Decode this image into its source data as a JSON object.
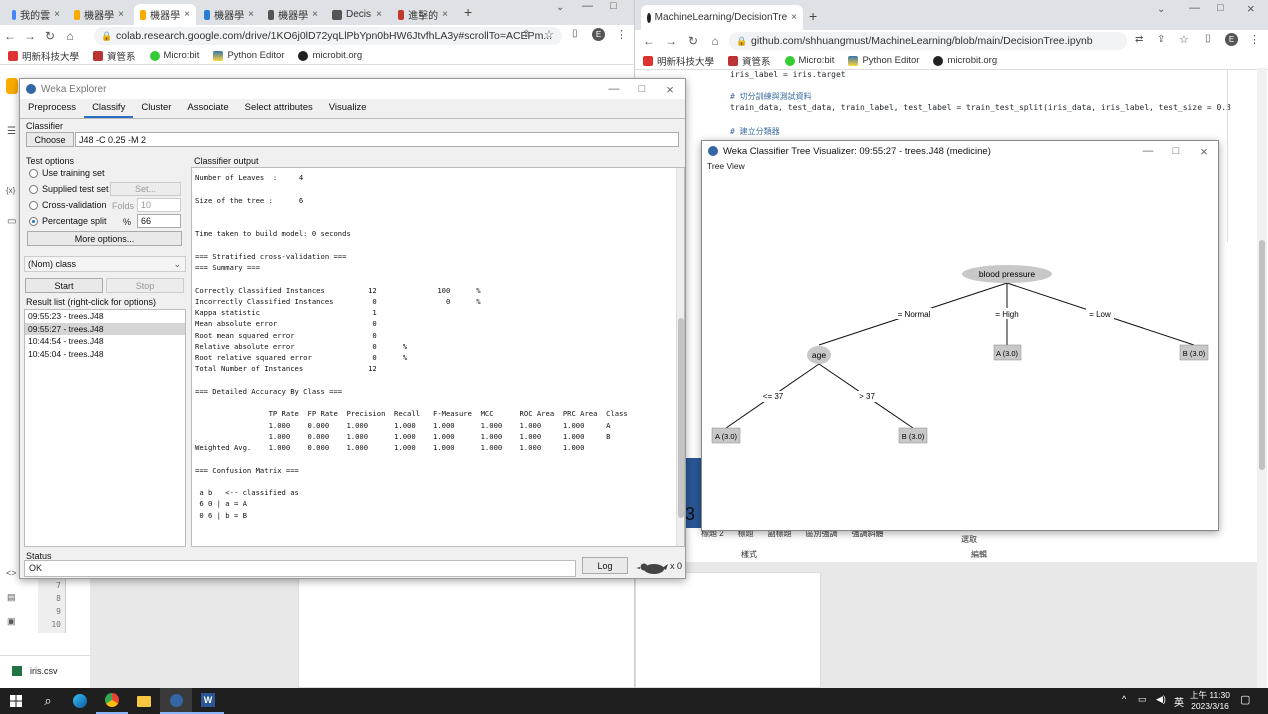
{
  "left_browser": {
    "tabs": [
      {
        "label": "我的雲"
      },
      {
        "label": "機器學"
      },
      {
        "label": "機器學"
      },
      {
        "label": "機器學"
      },
      {
        "label": "機器學"
      },
      {
        "label": "Decis"
      },
      {
        "label": "進擊的"
      }
    ],
    "url": "colab.research.google.com/drive/1KO6j0lD72yqLlPbYpn0bHW6JtvfhLA3y#scrollTo=ACEPm...",
    "bookmarks": [
      "明新科技大學",
      "資管系",
      "Micro:bit",
      "Python Editor",
      "microbit.org"
    ]
  },
  "right_browser": {
    "tab": "MachineLearning/DecisionTre",
    "url": "github.com/shhuangmust/MachineLearning/blob/main/DecisionTree.ipynb",
    "bookmarks": [
      "明新科技大學",
      "資管系",
      "Micro:bit",
      "Python Editor",
      "microbit.org"
    ],
    "code_lines": [
      "iris_label = iris.target",
      "# 切分訓練與測試資料",
      "train_data, test_data, train_label, test_label = train_test_split(iris_data, iris_label, test_size = 0.3",
      "# 建立分類器"
    ]
  },
  "weka": {
    "title": "Weka Explorer",
    "tabs": [
      "Preprocess",
      "Classify",
      "Cluster",
      "Associate",
      "Select attributes",
      "Visualize"
    ],
    "classifier_label": "Classifier",
    "choose_button": "Choose",
    "classifier_value": "J48 -C 0.25 -M 2",
    "test_options_label": "Test options",
    "options": {
      "use_training": "Use training set",
      "supplied": "Supplied test set",
      "set_button": "Set...",
      "cross_val": "Cross-validation",
      "folds_label": "Folds",
      "folds_value": "10",
      "percentage": "Percentage split",
      "pct_symbol": "%",
      "pct_value": "66",
      "more_options": "More options..."
    },
    "class_select": "(Nom) class",
    "start_button": "Start",
    "stop_button": "Stop",
    "result_list_label": "Result list (right-click for options)",
    "results": [
      "09:55:23 - trees.J48",
      "09:55:27 - trees.J48",
      "10:44:54 - trees.J48",
      "10:45:04 - trees.J48"
    ],
    "output_label": "Classifier output",
    "output_text": "Number of Leaves  :     4\n\nSize of the tree :      6\n\n\nTime taken to build model: 0 seconds\n\n=== Stratified cross-validation ===\n=== Summary ===\n\nCorrectly Classified Instances          12              100      %\nIncorrectly Classified Instances         0                0      %\nKappa statistic                          1\nMean absolute error                      0\nRoot mean squared error                  0\nRelative absolute error                  0      %\nRoot relative squared error              0      %\nTotal Number of Instances               12\n\n=== Detailed Accuracy By Class ===\n\n                 TP Rate  FP Rate  Precision  Recall   F-Measure  MCC      ROC Area  PRC Area  Class\n                 1.000    0.000    1.000      1.000    1.000      1.000    1.000     1.000     A\n                 1.000    0.000    1.000      1.000    1.000      1.000    1.000     1.000     B\nWeighted Avg.    1.000    0.000    1.000      1.000    1.000      1.000    1.000     1.000\n\n=== Confusion Matrix ===\n\n a b   <-- classified as\n 6 0 | a = A\n 0 6 | b = B",
    "status_label": "Status",
    "status_value": "OK",
    "log_button": "Log",
    "bird_count": "x 0"
  },
  "tree_visualizer": {
    "title": "Weka Classifier Tree Visualizer: 09:55:27 - trees.J48 (medicine)",
    "view_label": "Tree View",
    "nodes": {
      "root": "blood pressure",
      "age": "age",
      "leaf_high": "A (3.0)",
      "leaf_low": "B (3.0)",
      "leaf_le37": "A (3.0)",
      "leaf_gt37": "B (3.0)"
    },
    "edges": {
      "normal": "= Normal",
      "high": "= High",
      "low": "= Low",
      "le37": "<= 37",
      "gt37": "> 37"
    }
  },
  "background_word": {
    "ribbon_labels": [
      "標題 2",
      "標題",
      "副標題",
      "區別強調",
      "強調斜體"
    ],
    "styles_label": "樣式",
    "select_label": "選取",
    "edit_label": "編輯",
    "line_numbers": [
      "7",
      "8",
      "9",
      "10"
    ],
    "file_name": "iris.csv"
  },
  "taskbar": {
    "time": "上午 11:30",
    "date": "2023/3/16",
    "ime": "英"
  }
}
